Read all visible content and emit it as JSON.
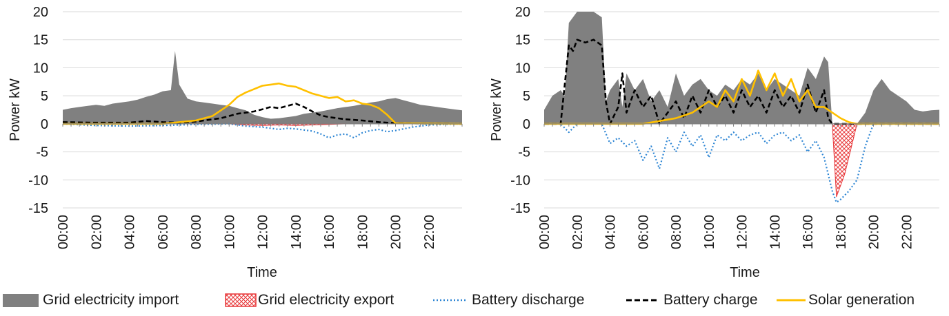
{
  "legend": {
    "import": "Grid electricity import",
    "export": "Grid electricity export",
    "discharge": "Battery discharge",
    "charge": "Battery charge",
    "solar": "Solar generation"
  },
  "colors": {
    "import": "#808080",
    "export": "#e8383a",
    "discharge": "#2e86d4",
    "charge": "#000000",
    "solar": "#ffc000",
    "grid": "#d9d9d9",
    "axis": "#7f7f7f"
  },
  "chart_data": [
    {
      "type": "area",
      "xlabel": "Time",
      "ylabel": "Power kW",
      "ylim": [
        -15,
        20
      ],
      "xlim": [
        0,
        24
      ],
      "yticks": [
        "-15",
        "-10",
        "-5",
        "0",
        "5",
        "10",
        "15",
        "20"
      ],
      "xticks": [
        "00:00",
        "02:00",
        "04:00",
        "06:00",
        "08:00",
        "10:00",
        "12:00",
        "14:00",
        "16:00",
        "18:00",
        "20:00",
        "22:00"
      ],
      "grid": true,
      "series": [
        {
          "key": "import",
          "x": [
            0,
            0.5,
            1,
            1.5,
            2,
            2.5,
            3,
            3.5,
            4,
            4.5,
            5,
            5.5,
            6,
            6.5,
            6.75,
            7,
            7.5,
            8,
            8.5,
            9,
            9.5,
            10,
            10.5,
            11,
            11.5,
            12,
            12.5,
            13,
            13.5,
            14,
            14.5,
            15,
            15.5,
            16,
            16.5,
            17,
            17.5,
            18,
            18.5,
            19,
            19.5,
            20,
            20.5,
            21,
            21.5,
            22,
            22.5,
            23,
            23.5,
            24
          ],
          "values": [
            2.5,
            2.8,
            3,
            3.2,
            3.4,
            3.2,
            3.6,
            3.8,
            4,
            4.3,
            4.8,
            5.2,
            5.8,
            6,
            13,
            7,
            4.5,
            4,
            3.8,
            3.6,
            3.4,
            3.2,
            2.8,
            2.4,
            1.6,
            1.2,
            0.9,
            1,
            1.2,
            1.4,
            1.8,
            2,
            2.2,
            2.5,
            2.8,
            3,
            3.2,
            3.5,
            3.8,
            4,
            4.4,
            4.6,
            4.2,
            3.8,
            3.4,
            3.2,
            3,
            2.8,
            2.6,
            2.4
          ]
        },
        {
          "key": "export",
          "x": [
            10,
            11,
            12,
            13,
            14,
            15,
            16,
            17
          ],
          "values": [
            0,
            -0.2,
            -0.3,
            -0.2,
            -0.3,
            -0.2,
            -0.1,
            0
          ]
        },
        {
          "key": "discharge",
          "x": [
            0,
            2,
            4,
            6,
            8,
            10,
            11,
            12,
            13,
            13.5,
            14,
            14.5,
            15,
            15.5,
            16,
            16.5,
            17,
            17.5,
            18,
            18.5,
            19,
            19.5,
            20,
            21,
            22,
            24
          ],
          "values": [
            0,
            -0.3,
            -0.4,
            -0.3,
            -0.1,
            0,
            -0.4,
            -0.6,
            -1,
            -0.8,
            -0.9,
            -1.1,
            -1.3,
            -1.8,
            -2.5,
            -2,
            -1.8,
            -2.5,
            -1.6,
            -1.2,
            -1,
            -1.4,
            -1.2,
            -0.6,
            -0.2,
            0
          ]
        },
        {
          "key": "charge",
          "x": [
            0,
            2,
            4,
            5,
            6,
            7,
            8,
            9,
            9.5,
            10,
            10.5,
            11,
            11.5,
            12,
            12.5,
            13,
            13.5,
            14,
            14.5,
            15,
            15.5,
            16,
            17,
            18,
            19,
            20,
            24
          ],
          "values": [
            0.3,
            0.2,
            0.2,
            0.5,
            0.3,
            0.2,
            0.4,
            0.8,
            1,
            1.4,
            1.8,
            2,
            2.2,
            2.6,
            3,
            2.8,
            3.2,
            3.6,
            3,
            2.2,
            1.5,
            1.2,
            0.8,
            0.6,
            0.3,
            0.1,
            0
          ]
        },
        {
          "key": "solar",
          "x": [
            0,
            6,
            7,
            8,
            9,
            9.5,
            10,
            10.5,
            11,
            11.5,
            12,
            12.5,
            13,
            13.5,
            14,
            14.5,
            15,
            15.5,
            16,
            16.5,
            17,
            17.5,
            18,
            18.5,
            19,
            19.5,
            20,
            24
          ],
          "values": [
            0,
            0,
            0.3,
            0.6,
            1.4,
            2.4,
            3.4,
            4.8,
            5.6,
            6.2,
            6.8,
            7,
            7.2,
            6.8,
            6.6,
            6,
            5.4,
            5,
            4.6,
            4.8,
            4,
            4.2,
            3.6,
            3.4,
            2.8,
            1.6,
            0.1,
            0
          ]
        }
      ]
    },
    {
      "type": "area",
      "xlabel": "Time",
      "ylabel": "Power kW",
      "ylim": [
        -15,
        20
      ],
      "xlim": [
        0,
        24
      ],
      "yticks": [
        "-15",
        "-10",
        "-5",
        "0",
        "5",
        "10",
        "15",
        "20"
      ],
      "xticks": [
        "00:00",
        "02:00",
        "04:00",
        "06:00",
        "08:00",
        "10:00",
        "12:00",
        "14:00",
        "16:00",
        "18:00",
        "20:00",
        "22:00"
      ],
      "grid": true,
      "series": [
        {
          "key": "import",
          "x": [
            0,
            0.5,
            1,
            1.25,
            1.5,
            2,
            2.5,
            3,
            3.5,
            3.75,
            4,
            4.5,
            4.75,
            5,
            5.5,
            6,
            6.5,
            7,
            7.5,
            8,
            8.5,
            9,
            9.5,
            10,
            10.5,
            11,
            11.5,
            12,
            12.5,
            13,
            13.5,
            14,
            14.5,
            15,
            15.5,
            16,
            16.5,
            17,
            17.25,
            17.5,
            18,
            18.5,
            19,
            19.5,
            20,
            20.5,
            21,
            21.5,
            22,
            22.5,
            23,
            23.5,
            24
          ],
          "values": [
            2.5,
            5,
            6,
            5,
            18,
            20,
            20,
            20,
            19,
            4,
            6,
            8,
            3,
            9,
            6,
            8,
            4,
            6,
            3,
            9,
            5,
            7,
            8,
            6,
            5,
            7,
            6,
            8,
            7,
            9,
            6,
            8,
            7,
            6,
            5,
            10,
            8,
            12,
            11,
            0,
            0,
            0,
            0,
            2,
            6,
            8,
            6,
            5,
            4,
            2.5,
            2.2,
            2.4,
            2.5
          ]
        },
        {
          "key": "export",
          "x": [
            17.5,
            17.75,
            18,
            18.25,
            18.5,
            18.75,
            19
          ],
          "values": [
            0,
            -13,
            -11,
            -9,
            -6,
            -3,
            0
          ]
        },
        {
          "key": "discharge",
          "x": [
            0,
            1,
            1.5,
            2,
            3,
            3.5,
            4,
            4.5,
            5,
            5.5,
            6,
            6.5,
            7,
            7.5,
            8,
            8.5,
            9,
            9.5,
            10,
            10.5,
            11,
            11.5,
            12,
            12.5,
            13,
            13.5,
            14,
            14.5,
            15,
            15.5,
            16,
            16.5,
            17,
            17.5,
            17.75,
            18,
            18.5,
            19,
            19.5,
            20,
            24
          ],
          "values": [
            0,
            0,
            -1.5,
            0,
            0,
            0,
            -3.5,
            -2.5,
            -4,
            -3,
            -6.5,
            -4,
            -8,
            -2.5,
            -5,
            -1.5,
            -4,
            -2,
            -6,
            -2,
            -3,
            -1.5,
            -3,
            -2,
            -1.5,
            -3.5,
            -2,
            -1.5,
            -3,
            -2,
            -5,
            -3,
            -6,
            -12,
            -14,
            -13.5,
            -12,
            -10,
            -4,
            0,
            0
          ]
        },
        {
          "key": "charge",
          "x": [
            0,
            1,
            1.5,
            1.75,
            2,
            2.5,
            3,
            3.5,
            3.75,
            4,
            4.5,
            4.75,
            5,
            5.5,
            6,
            6.5,
            7,
            7.5,
            8,
            8.5,
            9,
            9.5,
            10,
            10.5,
            11,
            11.5,
            12,
            12.5,
            13,
            13.5,
            14,
            14.5,
            15,
            15.5,
            16,
            16.5,
            17,
            17.25,
            17.5,
            18,
            24
          ],
          "values": [
            0,
            0,
            14,
            13,
            15,
            14.5,
            15,
            14,
            4,
            0,
            3,
            9,
            2,
            6,
            3,
            5,
            0,
            2,
            4,
            1,
            5,
            2,
            6,
            3,
            5,
            2,
            6,
            3,
            5,
            2,
            6,
            3,
            5,
            2,
            7,
            2,
            6,
            1,
            0,
            0,
            0
          ]
        },
        {
          "key": "solar",
          "x": [
            0,
            6,
            7,
            8,
            9,
            9.5,
            10,
            10.5,
            11,
            11.5,
            12,
            12.5,
            13,
            13.5,
            14,
            14.5,
            15,
            15.5,
            16,
            16.5,
            17,
            17.5,
            18,
            18.5,
            19,
            24
          ],
          "values": [
            0,
            0,
            0.5,
            1,
            2,
            3,
            4,
            3,
            6,
            4,
            8,
            5,
            9.5,
            6,
            9,
            5,
            8,
            4,
            6,
            3,
            3,
            2,
            1,
            0.3,
            0,
            0
          ]
        }
      ]
    }
  ]
}
